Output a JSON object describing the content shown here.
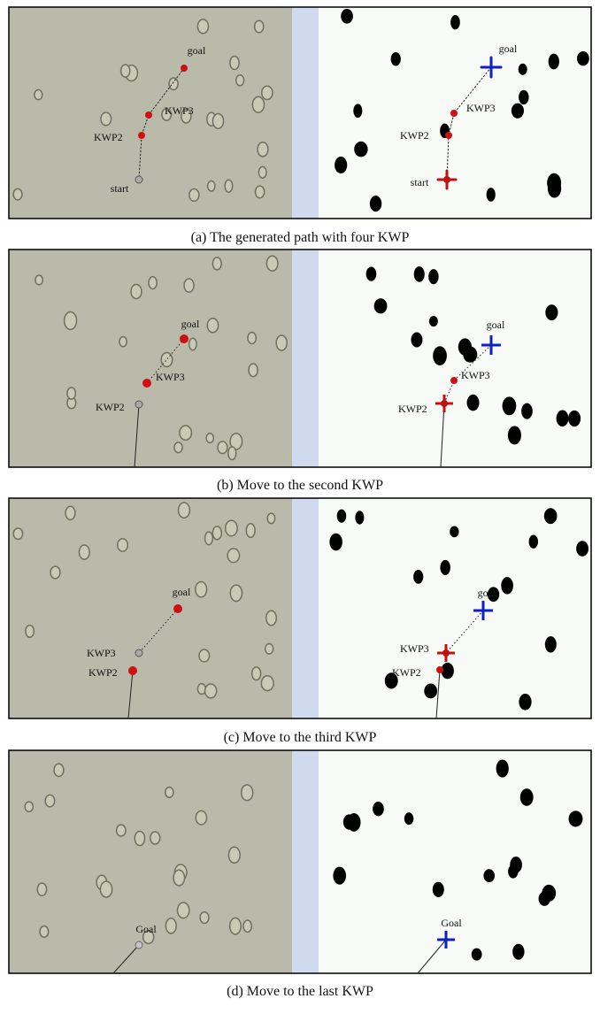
{
  "panels": [
    {
      "caption": "(a) The generated path with four KWP",
      "left": [
        "goal",
        "KWP3",
        "KWP2",
        "start"
      ],
      "right": [
        "goal",
        "KWP3",
        "KWP2",
        "start"
      ]
    },
    {
      "caption": "(b) Move to the second KWP",
      "left": [
        "goal",
        "KWP3",
        "KWP2"
      ],
      "right": [
        "goal",
        "KWP3",
        "KWP2"
      ]
    },
    {
      "caption": "(c) Move to the third KWP",
      "left": [
        "goal",
        "KWP3",
        "KWP2"
      ],
      "right": [
        "goal",
        "KWP3",
        "KWP2"
      ]
    },
    {
      "caption": "(d) Move to the last KWP",
      "left": [
        "Goal"
      ],
      "right": [
        "Goal"
      ]
    }
  ]
}
